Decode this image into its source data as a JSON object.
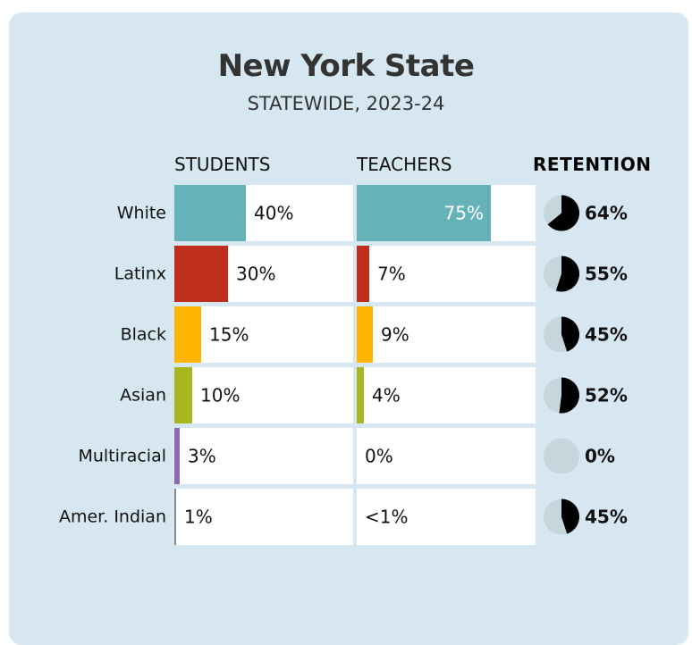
{
  "header": {
    "title": "New York State",
    "subtitle": "STATEWIDE, 2023-24"
  },
  "columns": {
    "students": "STUDENTS",
    "teachers": "TEACHERS",
    "retention": "RETENTION"
  },
  "colors": {
    "background": "#d6e7f2",
    "cell_bg": "#ffffff",
    "pie_empty": "#c6d6dd",
    "pie_fill": "#000000"
  },
  "chart_data": {
    "type": "bar",
    "title": "New York State",
    "subtitle": "STATEWIDE, 2023-24",
    "categories": [
      "White",
      "Latinx",
      "Black",
      "Asian",
      "Multiracial",
      "Amer. Indian"
    ],
    "bar_colors": [
      "#65b2b9",
      "#bf2e1b",
      "#ffb400",
      "#aab61f",
      "#8d6aad",
      "#888888"
    ],
    "series": [
      {
        "name": "STUDENTS",
        "values": [
          40,
          30,
          15,
          10,
          3,
          1
        ],
        "labels": [
          "40%",
          "30%",
          "15%",
          "10%",
          "3%",
          "1%"
        ]
      },
      {
        "name": "TEACHERS",
        "values": [
          75,
          7,
          9,
          4,
          0,
          0.5
        ],
        "labels": [
          "75%",
          "7%",
          "9%",
          "4%",
          "0%",
          "<1%"
        ]
      },
      {
        "name": "RETENTION",
        "type": "pie",
        "values": [
          64,
          55,
          45,
          52,
          0,
          45
        ],
        "labels": [
          "64%",
          "55%",
          "45%",
          "52%",
          "0%",
          "45%"
        ]
      }
    ],
    "xlim": [
      0,
      100
    ]
  }
}
